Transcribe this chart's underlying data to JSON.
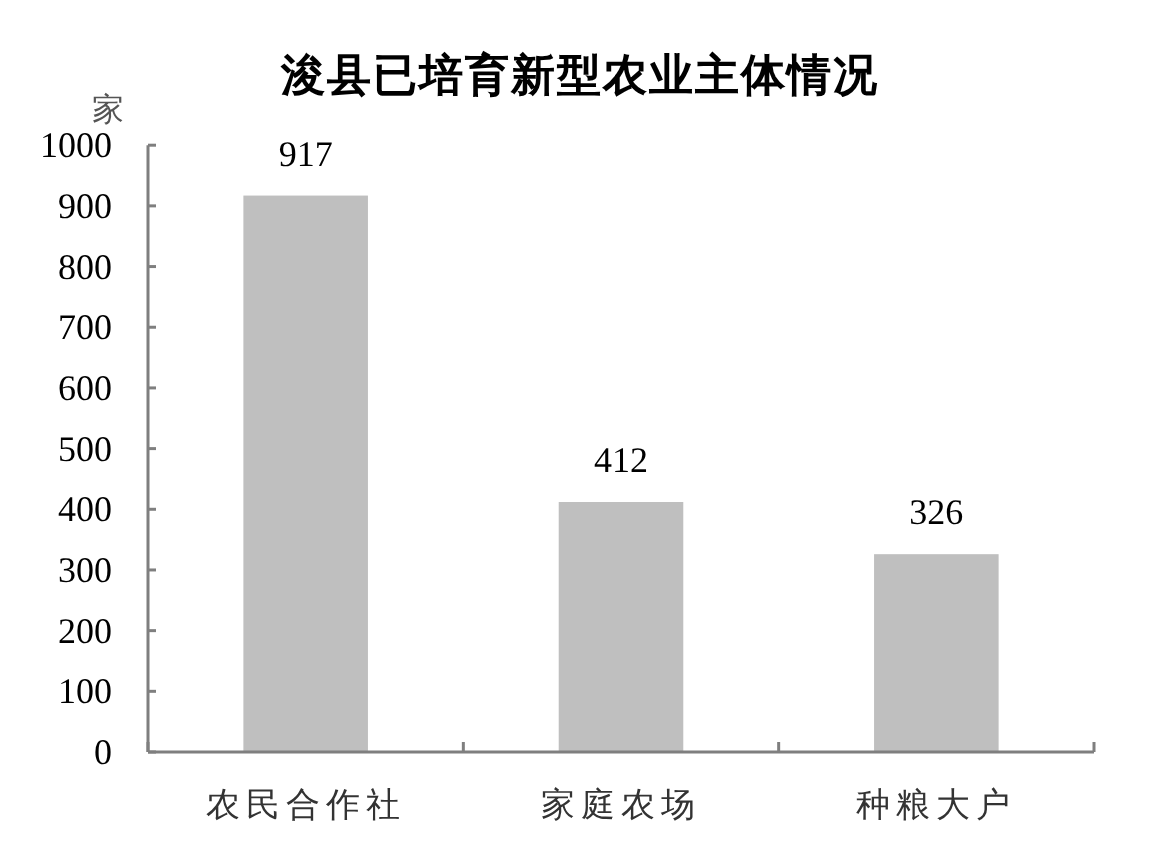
{
  "chart_data": {
    "type": "bar",
    "title": "浚县已培育新型农业主体情况",
    "ylabel": "家",
    "categories": [
      "农民合作社",
      "家庭农场",
      "种粮大户"
    ],
    "values": [
      917,
      412,
      326
    ],
    "color": "#bfbfbf",
    "ylim": [
      0,
      1000
    ],
    "yticks": [
      0,
      100,
      200,
      300,
      400,
      500,
      600,
      700,
      800,
      900,
      1000
    ],
    "data_labels": true
  }
}
